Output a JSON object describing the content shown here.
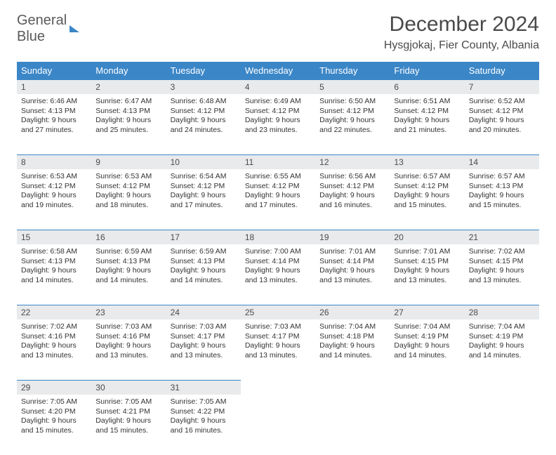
{
  "logo": {
    "part1": "General",
    "part2": "Blue"
  },
  "title": "December 2024",
  "location": "Hysgjokaj, Fier County, Albania",
  "day_header_bg": "#3b86c7",
  "daynum_bg": "#e8eaec",
  "daynum_border": "#3b86c7",
  "days_of_week": [
    "Sunday",
    "Monday",
    "Tuesday",
    "Wednesday",
    "Thursday",
    "Friday",
    "Saturday"
  ],
  "weeks": [
    [
      {
        "n": "1",
        "sr": "Sunrise: 6:46 AM",
        "ss": "Sunset: 4:13 PM",
        "dl1": "Daylight: 9 hours",
        "dl2": "and 27 minutes."
      },
      {
        "n": "2",
        "sr": "Sunrise: 6:47 AM",
        "ss": "Sunset: 4:13 PM",
        "dl1": "Daylight: 9 hours",
        "dl2": "and 25 minutes."
      },
      {
        "n": "3",
        "sr": "Sunrise: 6:48 AM",
        "ss": "Sunset: 4:12 PM",
        "dl1": "Daylight: 9 hours",
        "dl2": "and 24 minutes."
      },
      {
        "n": "4",
        "sr": "Sunrise: 6:49 AM",
        "ss": "Sunset: 4:12 PM",
        "dl1": "Daylight: 9 hours",
        "dl2": "and 23 minutes."
      },
      {
        "n": "5",
        "sr": "Sunrise: 6:50 AM",
        "ss": "Sunset: 4:12 PM",
        "dl1": "Daylight: 9 hours",
        "dl2": "and 22 minutes."
      },
      {
        "n": "6",
        "sr": "Sunrise: 6:51 AM",
        "ss": "Sunset: 4:12 PM",
        "dl1": "Daylight: 9 hours",
        "dl2": "and 21 minutes."
      },
      {
        "n": "7",
        "sr": "Sunrise: 6:52 AM",
        "ss": "Sunset: 4:12 PM",
        "dl1": "Daylight: 9 hours",
        "dl2": "and 20 minutes."
      }
    ],
    [
      {
        "n": "8",
        "sr": "Sunrise: 6:53 AM",
        "ss": "Sunset: 4:12 PM",
        "dl1": "Daylight: 9 hours",
        "dl2": "and 19 minutes."
      },
      {
        "n": "9",
        "sr": "Sunrise: 6:53 AM",
        "ss": "Sunset: 4:12 PM",
        "dl1": "Daylight: 9 hours",
        "dl2": "and 18 minutes."
      },
      {
        "n": "10",
        "sr": "Sunrise: 6:54 AM",
        "ss": "Sunset: 4:12 PM",
        "dl1": "Daylight: 9 hours",
        "dl2": "and 17 minutes."
      },
      {
        "n": "11",
        "sr": "Sunrise: 6:55 AM",
        "ss": "Sunset: 4:12 PM",
        "dl1": "Daylight: 9 hours",
        "dl2": "and 17 minutes."
      },
      {
        "n": "12",
        "sr": "Sunrise: 6:56 AM",
        "ss": "Sunset: 4:12 PM",
        "dl1": "Daylight: 9 hours",
        "dl2": "and 16 minutes."
      },
      {
        "n": "13",
        "sr": "Sunrise: 6:57 AM",
        "ss": "Sunset: 4:12 PM",
        "dl1": "Daylight: 9 hours",
        "dl2": "and 15 minutes."
      },
      {
        "n": "14",
        "sr": "Sunrise: 6:57 AM",
        "ss": "Sunset: 4:13 PM",
        "dl1": "Daylight: 9 hours",
        "dl2": "and 15 minutes."
      }
    ],
    [
      {
        "n": "15",
        "sr": "Sunrise: 6:58 AM",
        "ss": "Sunset: 4:13 PM",
        "dl1": "Daylight: 9 hours",
        "dl2": "and 14 minutes."
      },
      {
        "n": "16",
        "sr": "Sunrise: 6:59 AM",
        "ss": "Sunset: 4:13 PM",
        "dl1": "Daylight: 9 hours",
        "dl2": "and 14 minutes."
      },
      {
        "n": "17",
        "sr": "Sunrise: 6:59 AM",
        "ss": "Sunset: 4:13 PM",
        "dl1": "Daylight: 9 hours",
        "dl2": "and 14 minutes."
      },
      {
        "n": "18",
        "sr": "Sunrise: 7:00 AM",
        "ss": "Sunset: 4:14 PM",
        "dl1": "Daylight: 9 hours",
        "dl2": "and 13 minutes."
      },
      {
        "n": "19",
        "sr": "Sunrise: 7:01 AM",
        "ss": "Sunset: 4:14 PM",
        "dl1": "Daylight: 9 hours",
        "dl2": "and 13 minutes."
      },
      {
        "n": "20",
        "sr": "Sunrise: 7:01 AM",
        "ss": "Sunset: 4:15 PM",
        "dl1": "Daylight: 9 hours",
        "dl2": "and 13 minutes."
      },
      {
        "n": "21",
        "sr": "Sunrise: 7:02 AM",
        "ss": "Sunset: 4:15 PM",
        "dl1": "Daylight: 9 hours",
        "dl2": "and 13 minutes."
      }
    ],
    [
      {
        "n": "22",
        "sr": "Sunrise: 7:02 AM",
        "ss": "Sunset: 4:16 PM",
        "dl1": "Daylight: 9 hours",
        "dl2": "and 13 minutes."
      },
      {
        "n": "23",
        "sr": "Sunrise: 7:03 AM",
        "ss": "Sunset: 4:16 PM",
        "dl1": "Daylight: 9 hours",
        "dl2": "and 13 minutes."
      },
      {
        "n": "24",
        "sr": "Sunrise: 7:03 AM",
        "ss": "Sunset: 4:17 PM",
        "dl1": "Daylight: 9 hours",
        "dl2": "and 13 minutes."
      },
      {
        "n": "25",
        "sr": "Sunrise: 7:03 AM",
        "ss": "Sunset: 4:17 PM",
        "dl1": "Daylight: 9 hours",
        "dl2": "and 13 minutes."
      },
      {
        "n": "26",
        "sr": "Sunrise: 7:04 AM",
        "ss": "Sunset: 4:18 PM",
        "dl1": "Daylight: 9 hours",
        "dl2": "and 14 minutes."
      },
      {
        "n": "27",
        "sr": "Sunrise: 7:04 AM",
        "ss": "Sunset: 4:19 PM",
        "dl1": "Daylight: 9 hours",
        "dl2": "and 14 minutes."
      },
      {
        "n": "28",
        "sr": "Sunrise: 7:04 AM",
        "ss": "Sunset: 4:19 PM",
        "dl1": "Daylight: 9 hours",
        "dl2": "and 14 minutes."
      }
    ],
    [
      {
        "n": "29",
        "sr": "Sunrise: 7:05 AM",
        "ss": "Sunset: 4:20 PM",
        "dl1": "Daylight: 9 hours",
        "dl2": "and 15 minutes."
      },
      {
        "n": "30",
        "sr": "Sunrise: 7:05 AM",
        "ss": "Sunset: 4:21 PM",
        "dl1": "Daylight: 9 hours",
        "dl2": "and 15 minutes."
      },
      {
        "n": "31",
        "sr": "Sunrise: 7:05 AM",
        "ss": "Sunset: 4:22 PM",
        "dl1": "Daylight: 9 hours",
        "dl2": "and 16 minutes."
      },
      null,
      null,
      null,
      null
    ]
  ]
}
